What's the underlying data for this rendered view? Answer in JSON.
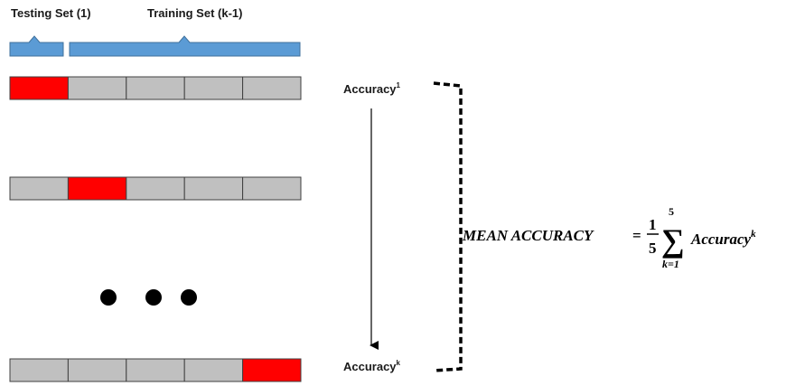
{
  "labels": {
    "testing_set": "Testing Set (1)",
    "training_set": "Training Set (k-1)"
  },
  "colors": {
    "brace": "#5b9bd5",
    "brace_stroke": "#41719c",
    "test_fold": "#ff0000",
    "train_fold": "#c0c0c0",
    "fold_border": "#404040"
  },
  "folds_per_row": 5,
  "rows": [
    {
      "test_index": 0
    },
    {
      "test_index": 1
    },
    {
      "test_index": 4
    }
  ],
  "ellipsis": "• • •",
  "accuracy": {
    "first": {
      "base": "Accuracy",
      "sup": "1"
    },
    "last": {
      "base": "Accuracy",
      "sup": "k"
    }
  },
  "formula": {
    "lhs": "MEAN ACCURACY",
    "equals": "=",
    "numerator": "1",
    "denominator": "5",
    "sum_symbol": "∑",
    "upper_limit": "5",
    "lower_limit": "k=1",
    "term_base": "Accuracy",
    "term_sup": "k"
  }
}
